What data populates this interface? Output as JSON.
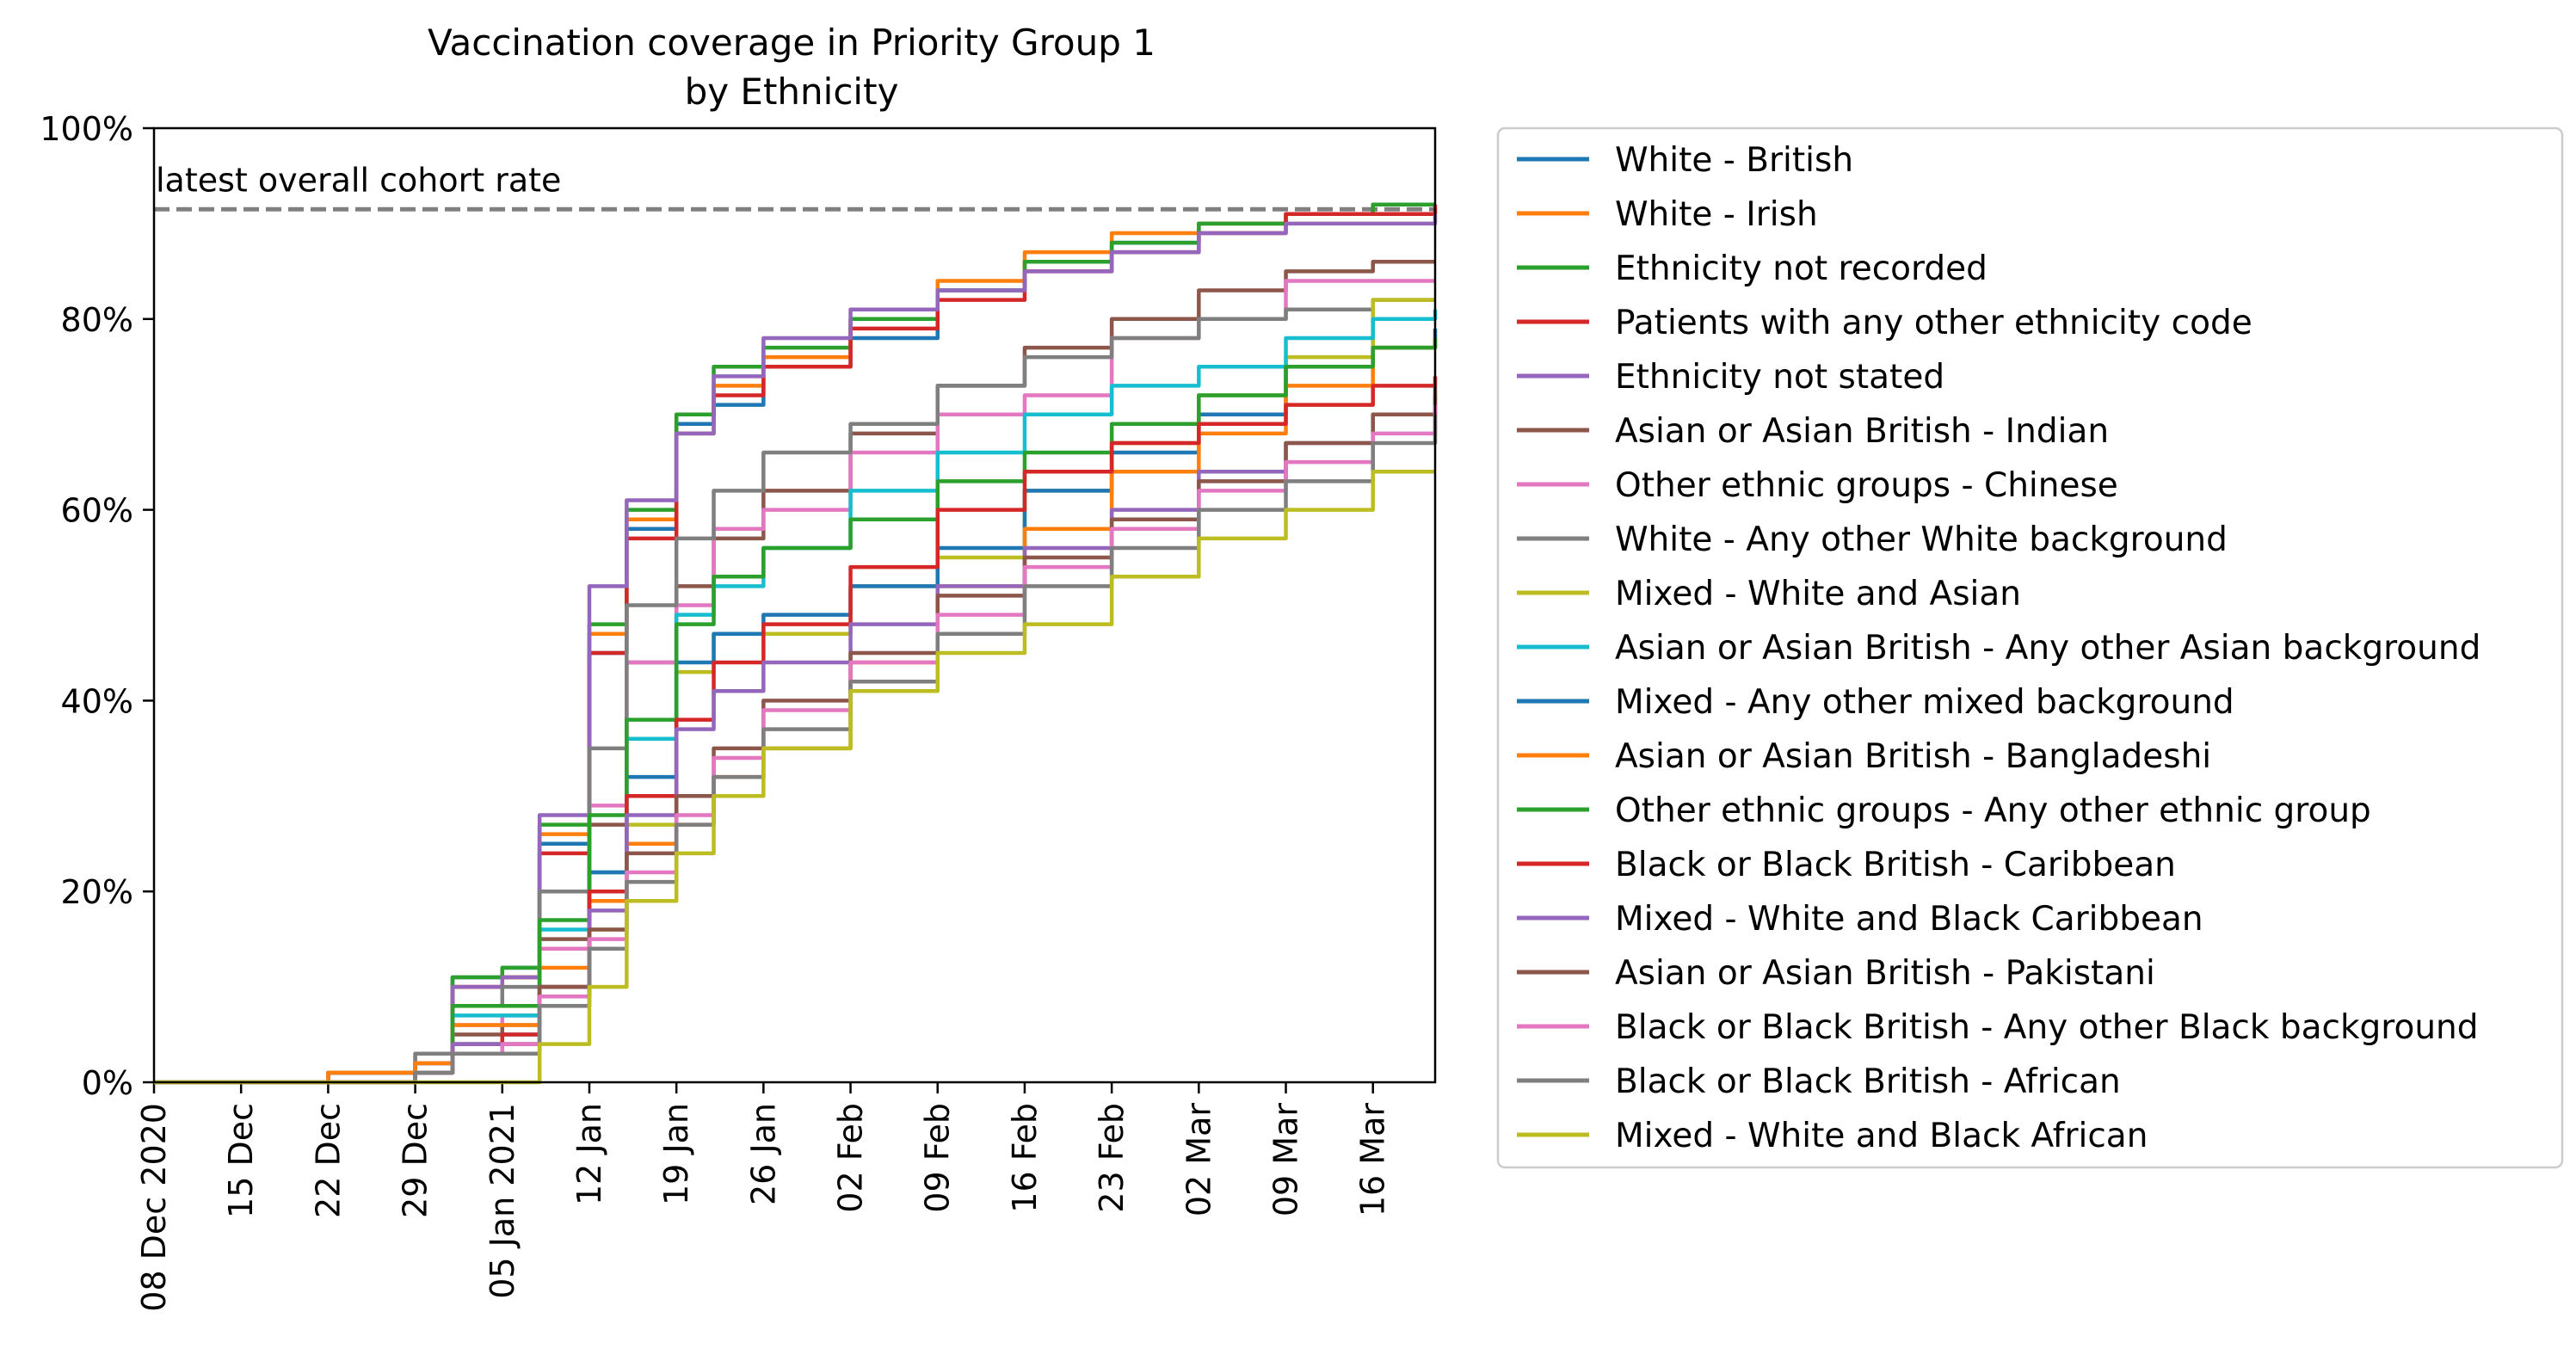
{
  "chart_data": {
    "type": "line",
    "title": "Vaccination coverage in Priority Group 1",
    "subtitle": "by Ethnicity",
    "xlabel": "",
    "ylabel": "",
    "x_range": [
      "2020-12-08",
      "2021-03-21"
    ],
    "ylim": [
      0,
      100
    ],
    "y_ticks": [
      "0%",
      "20%",
      "40%",
      "60%",
      "80%",
      "100%"
    ],
    "y_tick_values": [
      0,
      20,
      40,
      60,
      80,
      100
    ],
    "x_ticks": [
      "08 Dec 2020",
      "15 Dec",
      "22 Dec",
      "29 Dec",
      "05 Jan 2021",
      "12 Jan",
      "19 Jan",
      "26 Jan",
      "02 Feb",
      "09 Feb",
      "16 Feb",
      "23 Feb",
      "02 Mar",
      "09 Mar",
      "16 Mar"
    ],
    "x_tick_dates": [
      "2020-12-08",
      "2020-12-15",
      "2020-12-22",
      "2020-12-29",
      "2021-01-05",
      "2021-01-12",
      "2021-01-19",
      "2021-01-26",
      "2021-02-02",
      "2021-02-09",
      "2021-02-16",
      "2021-02-23",
      "2021-03-02",
      "2021-03-09",
      "2021-03-16"
    ],
    "grid": false,
    "legend_position": "outside-right",
    "reference_line": {
      "label": "latest overall cohort rate",
      "value": 91.5,
      "color": "#808080",
      "style": "dashed"
    },
    "series": [
      {
        "name": "White - British",
        "color": "#1f77b4",
        "x": [
          "2020-12-08",
          "2020-12-15",
          "2020-12-22",
          "2020-12-29",
          "2021-01-01",
          "2021-01-05",
          "2021-01-08",
          "2021-01-12",
          "2021-01-15",
          "2021-01-19",
          "2021-01-22",
          "2021-01-26",
          "2021-02-02",
          "2021-02-09",
          "2021-02-16",
          "2021-02-23",
          "2021-03-02",
          "2021-03-09",
          "2021-03-16",
          "2021-03-21"
        ],
        "y": [
          0,
          0,
          1,
          2,
          11,
          12,
          25,
          45,
          58,
          69,
          71,
          75,
          78,
          83,
          86,
          88,
          90,
          91,
          92,
          92
        ]
      },
      {
        "name": "White - Irish",
        "color": "#ff7f0e",
        "x": [
          "2020-12-08",
          "2020-12-15",
          "2020-12-22",
          "2020-12-29",
          "2021-01-01",
          "2021-01-05",
          "2021-01-08",
          "2021-01-12",
          "2021-01-15",
          "2021-01-19",
          "2021-01-22",
          "2021-01-26",
          "2021-02-02",
          "2021-02-09",
          "2021-02-16",
          "2021-02-23",
          "2021-03-02",
          "2021-03-09",
          "2021-03-16",
          "2021-03-21"
        ],
        "y": [
          0,
          0,
          1,
          3,
          10,
          11,
          26,
          47,
          59,
          70,
          73,
          76,
          80,
          84,
          87,
          89,
          90,
          91,
          92,
          92
        ]
      },
      {
        "name": "Ethnicity not recorded",
        "color": "#2ca02c",
        "x": [
          "2020-12-08",
          "2020-12-15",
          "2020-12-22",
          "2020-12-29",
          "2021-01-01",
          "2021-01-05",
          "2021-01-08",
          "2021-01-12",
          "2021-01-15",
          "2021-01-19",
          "2021-01-22",
          "2021-01-26",
          "2021-02-02",
          "2021-02-09",
          "2021-02-16",
          "2021-02-23",
          "2021-03-02",
          "2021-03-09",
          "2021-03-16",
          "2021-03-21"
        ],
        "y": [
          0,
          0,
          1,
          2,
          11,
          12,
          27,
          48,
          60,
          70,
          75,
          77,
          80,
          83,
          86,
          88,
          90,
          91,
          92,
          92
        ]
      },
      {
        "name": "Patients with any other ethnicity code",
        "color": "#d62728",
        "x": [
          "2020-12-08",
          "2020-12-15",
          "2020-12-22",
          "2020-12-29",
          "2021-01-01",
          "2021-01-05",
          "2021-01-08",
          "2021-01-12",
          "2021-01-15",
          "2021-01-19",
          "2021-01-22",
          "2021-01-26",
          "2021-02-02",
          "2021-02-09",
          "2021-02-16",
          "2021-02-23",
          "2021-03-02",
          "2021-03-09",
          "2021-03-16",
          "2021-03-21"
        ],
        "y": [
          0,
          0,
          1,
          2,
          10,
          11,
          24,
          45,
          57,
          68,
          72,
          75,
          79,
          82,
          85,
          87,
          89,
          91,
          91,
          92
        ]
      },
      {
        "name": "Ethnicity not stated",
        "color": "#9467bd",
        "x": [
          "2020-12-08",
          "2020-12-15",
          "2020-12-22",
          "2020-12-29",
          "2021-01-01",
          "2021-01-05",
          "2021-01-08",
          "2021-01-12",
          "2021-01-15",
          "2021-01-19",
          "2021-01-22",
          "2021-01-26",
          "2021-02-02",
          "2021-02-09",
          "2021-02-16",
          "2021-02-23",
          "2021-03-02",
          "2021-03-09",
          "2021-03-16",
          "2021-03-21"
        ],
        "y": [
          0,
          0,
          1,
          2,
          10,
          11,
          28,
          52,
          61,
          68,
          74,
          78,
          81,
          83,
          85,
          87,
          89,
          90,
          90,
          91
        ]
      },
      {
        "name": "Asian or Asian British - Indian",
        "color": "#8c564b",
        "x": [
          "2020-12-08",
          "2020-12-15",
          "2020-12-22",
          "2020-12-29",
          "2021-01-01",
          "2021-01-05",
          "2021-01-08",
          "2021-01-12",
          "2021-01-15",
          "2021-01-19",
          "2021-01-22",
          "2021-01-26",
          "2021-02-02",
          "2021-02-09",
          "2021-02-16",
          "2021-02-23",
          "2021-03-02",
          "2021-03-09",
          "2021-03-16",
          "2021-03-21"
        ],
        "y": [
          0,
          0,
          0,
          1,
          5,
          6,
          15,
          27,
          44,
          52,
          57,
          62,
          68,
          73,
          77,
          80,
          83,
          85,
          86,
          86
        ]
      },
      {
        "name": "Other ethnic groups - Chinese",
        "color": "#e377c2",
        "x": [
          "2020-12-08",
          "2020-12-15",
          "2020-12-22",
          "2020-12-29",
          "2021-01-01",
          "2021-01-05",
          "2021-01-08",
          "2021-01-12",
          "2021-01-15",
          "2021-01-19",
          "2021-01-22",
          "2021-01-26",
          "2021-02-02",
          "2021-02-09",
          "2021-02-16",
          "2021-02-23",
          "2021-03-02",
          "2021-03-09",
          "2021-03-16",
          "2021-03-21"
        ],
        "y": [
          0,
          0,
          0,
          1,
          6,
          7,
          14,
          29,
          44,
          50,
          58,
          60,
          66,
          70,
          72,
          78,
          80,
          84,
          84,
          84
        ]
      },
      {
        "name": "White - Any other White background",
        "color": "#7f7f7f",
        "x": [
          "2020-12-08",
          "2020-12-15",
          "2020-12-22",
          "2020-12-29",
          "2021-01-01",
          "2021-01-05",
          "2021-01-08",
          "2021-01-12",
          "2021-01-15",
          "2021-01-19",
          "2021-01-22",
          "2021-01-26",
          "2021-02-02",
          "2021-02-09",
          "2021-02-16",
          "2021-02-23",
          "2021-03-02",
          "2021-03-09",
          "2021-03-16",
          "2021-03-21"
        ],
        "y": [
          0,
          0,
          1,
          3,
          8,
          10,
          20,
          35,
          50,
          57,
          62,
          66,
          69,
          73,
          76,
          78,
          80,
          81,
          82,
          82
        ]
      },
      {
        "name": "Mixed - White and Asian",
        "color": "#bcbd22",
        "x": [
          "2020-12-08",
          "2020-12-15",
          "2020-12-22",
          "2020-12-29",
          "2021-01-01",
          "2021-01-05",
          "2021-01-08",
          "2021-01-12",
          "2021-01-15",
          "2021-01-19",
          "2021-01-22",
          "2021-01-26",
          "2021-02-02",
          "2021-02-09",
          "2021-02-16",
          "2021-02-23",
          "2021-03-02",
          "2021-03-09",
          "2021-03-16",
          "2021-03-21"
        ],
        "y": [
          0,
          0,
          0,
          1,
          3,
          4,
          10,
          16,
          27,
          43,
          47,
          47,
          52,
          55,
          62,
          67,
          72,
          76,
          82,
          82
        ]
      },
      {
        "name": "Asian or Asian British - Any other Asian background",
        "color": "#17becf",
        "x": [
          "2020-12-08",
          "2020-12-15",
          "2020-12-22",
          "2020-12-29",
          "2021-01-01",
          "2021-01-05",
          "2021-01-08",
          "2021-01-12",
          "2021-01-15",
          "2021-01-19",
          "2021-01-22",
          "2021-01-26",
          "2021-02-02",
          "2021-02-09",
          "2021-02-16",
          "2021-02-23",
          "2021-03-02",
          "2021-03-09",
          "2021-03-16",
          "2021-03-21"
        ],
        "y": [
          0,
          0,
          0,
          1,
          7,
          7,
          16,
          22,
          36,
          49,
          52,
          56,
          62,
          66,
          70,
          73,
          75,
          78,
          80,
          81
        ]
      },
      {
        "name": "Mixed - Any other mixed background",
        "color": "#1f77b4",
        "x": [
          "2020-12-08",
          "2020-12-15",
          "2020-12-22",
          "2020-12-29",
          "2021-01-01",
          "2021-01-05",
          "2021-01-08",
          "2021-01-12",
          "2021-01-15",
          "2021-01-19",
          "2021-01-22",
          "2021-01-26",
          "2021-02-02",
          "2021-02-09",
          "2021-02-16",
          "2021-02-23",
          "2021-03-02",
          "2021-03-09",
          "2021-03-16",
          "2021-03-21"
        ],
        "y": [
          0,
          0,
          0,
          1,
          4,
          5,
          10,
          22,
          32,
          44,
          47,
          49,
          52,
          56,
          62,
          66,
          70,
          75,
          77,
          79
        ]
      },
      {
        "name": "Asian or Asian British - Bangladeshi",
        "color": "#ff7f0e",
        "x": [
          "2020-12-08",
          "2020-12-15",
          "2020-12-22",
          "2020-12-29",
          "2021-01-01",
          "2021-01-05",
          "2021-01-08",
          "2021-01-12",
          "2021-01-15",
          "2021-01-19",
          "2021-01-22",
          "2021-01-26",
          "2021-02-02",
          "2021-02-09",
          "2021-02-16",
          "2021-02-23",
          "2021-03-02",
          "2021-03-09",
          "2021-03-16",
          "2021-03-21"
        ],
        "y": [
          0,
          0,
          1,
          2,
          6,
          6,
          12,
          19,
          25,
          27,
          32,
          35,
          44,
          52,
          58,
          64,
          68,
          73,
          77,
          78
        ]
      },
      {
        "name": "Other ethnic groups - Any other ethnic group",
        "color": "#2ca02c",
        "x": [
          "2020-12-08",
          "2020-12-15",
          "2020-12-22",
          "2020-12-29",
          "2021-01-01",
          "2021-01-05",
          "2021-01-08",
          "2021-01-12",
          "2021-01-15",
          "2021-01-19",
          "2021-01-22",
          "2021-01-26",
          "2021-02-02",
          "2021-02-09",
          "2021-02-16",
          "2021-02-23",
          "2021-03-02",
          "2021-03-09",
          "2021-03-16",
          "2021-03-21"
        ],
        "y": [
          0,
          0,
          0,
          1,
          8,
          8,
          17,
          28,
          38,
          48,
          53,
          56,
          59,
          63,
          66,
          69,
          72,
          75,
          77,
          78
        ]
      },
      {
        "name": "Black or Black British - Caribbean",
        "color": "#d62728",
        "x": [
          "2020-12-08",
          "2020-12-15",
          "2020-12-22",
          "2020-12-29",
          "2021-01-01",
          "2021-01-05",
          "2021-01-08",
          "2021-01-12",
          "2021-01-15",
          "2021-01-19",
          "2021-01-22",
          "2021-01-26",
          "2021-02-02",
          "2021-02-09",
          "2021-02-16",
          "2021-02-23",
          "2021-03-02",
          "2021-03-09",
          "2021-03-16",
          "2021-03-21"
        ],
        "y": [
          0,
          0,
          0,
          1,
          4,
          5,
          10,
          20,
          30,
          38,
          44,
          48,
          54,
          60,
          64,
          67,
          69,
          71,
          73,
          74
        ]
      },
      {
        "name": "Mixed - White and Black Caribbean",
        "color": "#9467bd",
        "x": [
          "2020-12-08",
          "2020-12-15",
          "2020-12-22",
          "2020-12-29",
          "2021-01-01",
          "2021-01-05",
          "2021-01-08",
          "2021-01-12",
          "2021-01-15",
          "2021-01-19",
          "2021-01-22",
          "2021-01-26",
          "2021-02-02",
          "2021-02-09",
          "2021-02-16",
          "2021-02-23",
          "2021-03-02",
          "2021-03-09",
          "2021-03-16",
          "2021-03-21"
        ],
        "y": [
          0,
          0,
          0,
          1,
          4,
          4,
          9,
          18,
          28,
          37,
          41,
          44,
          48,
          52,
          56,
          60,
          64,
          67,
          70,
          72
        ]
      },
      {
        "name": "Asian or Asian British - Pakistani",
        "color": "#8c564b",
        "x": [
          "2020-12-08",
          "2020-12-15",
          "2020-12-22",
          "2020-12-29",
          "2021-01-01",
          "2021-01-05",
          "2021-01-08",
          "2021-01-12",
          "2021-01-15",
          "2021-01-19",
          "2021-01-22",
          "2021-01-26",
          "2021-02-02",
          "2021-02-09",
          "2021-02-16",
          "2021-02-23",
          "2021-03-02",
          "2021-03-09",
          "2021-03-16",
          "2021-03-21"
        ],
        "y": [
          0,
          0,
          0,
          1,
          3,
          4,
          10,
          16,
          24,
          30,
          35,
          40,
          45,
          51,
          55,
          59,
          63,
          67,
          70,
          73
        ]
      },
      {
        "name": "Black or Black British - Any other Black background",
        "color": "#e377c2",
        "x": [
          "2020-12-08",
          "2020-12-15",
          "2020-12-22",
          "2020-12-29",
          "2021-01-01",
          "2021-01-05",
          "2021-01-08",
          "2021-01-12",
          "2021-01-15",
          "2021-01-19",
          "2021-01-22",
          "2021-01-26",
          "2021-02-02",
          "2021-02-09",
          "2021-02-16",
          "2021-02-23",
          "2021-03-02",
          "2021-03-09",
          "2021-03-16",
          "2021-03-21"
        ],
        "y": [
          0,
          0,
          0,
          1,
          3,
          4,
          9,
          15,
          22,
          28,
          34,
          39,
          44,
          49,
          54,
          58,
          62,
          65,
          68,
          71
        ]
      },
      {
        "name": "Black or Black British - African",
        "color": "#7f7f7f",
        "x": [
          "2020-12-08",
          "2020-12-15",
          "2020-12-22",
          "2020-12-29",
          "2021-01-01",
          "2021-01-05",
          "2021-01-08",
          "2021-01-12",
          "2021-01-15",
          "2021-01-19",
          "2021-01-22",
          "2021-01-26",
          "2021-02-02",
          "2021-02-09",
          "2021-02-16",
          "2021-02-23",
          "2021-03-02",
          "2021-03-09",
          "2021-03-16",
          "2021-03-21"
        ],
        "y": [
          0,
          0,
          0,
          1,
          3,
          3,
          8,
          14,
          21,
          27,
          32,
          37,
          42,
          47,
          52,
          56,
          60,
          63,
          67,
          70
        ]
      },
      {
        "name": "Mixed - White and Black African",
        "color": "#bcbd22",
        "x": [
          "2020-12-08",
          "2020-12-15",
          "2020-12-22",
          "2020-12-29",
          "2021-01-01",
          "2021-01-05",
          "2021-01-08",
          "2021-01-12",
          "2021-01-15",
          "2021-01-19",
          "2021-01-22",
          "2021-01-26",
          "2021-02-02",
          "2021-02-09",
          "2021-02-16",
          "2021-02-23",
          "2021-03-02",
          "2021-03-09",
          "2021-03-16",
          "2021-03-21"
        ],
        "y": [
          0,
          0,
          0,
          0,
          0,
          0,
          4,
          10,
          19,
          24,
          30,
          35,
          41,
          45,
          48,
          53,
          57,
          60,
          64,
          64
        ]
      }
    ]
  }
}
